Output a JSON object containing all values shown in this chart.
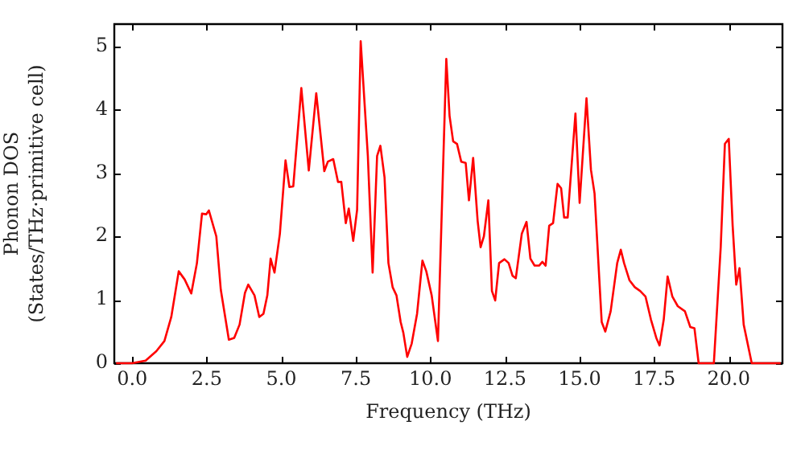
{
  "chart_data": {
    "type": "line",
    "xlabel": "Frequency (THz)",
    "ylabel": "Phonon DOS\n(States/THz·primitive cell)",
    "xlim": [
      -0.6,
      21.8
    ],
    "ylim": [
      0,
      5.35
    ],
    "xticks": [
      {
        "value": 0,
        "label": "0.0"
      },
      {
        "value": 2.5,
        "label": "2.5"
      },
      {
        "value": 5,
        "label": "5.0"
      },
      {
        "value": 7.5,
        "label": "7.5"
      },
      {
        "value": 10,
        "label": "10.0"
      },
      {
        "value": 12.5,
        "label": "12.5"
      },
      {
        "value": 15,
        "label": "15.0"
      },
      {
        "value": 17.5,
        "label": "17.5"
      },
      {
        "value": 20,
        "label": "20.0"
      }
    ],
    "yticks": [
      0,
      1,
      2,
      3,
      4,
      5
    ],
    "grid": false,
    "legend": false,
    "marker": "none",
    "line_style": "solid",
    "series": [
      {
        "color": "#ff0000",
        "x": [
          -0.54,
          0,
          0.45,
          0.81,
          1.08,
          1.31,
          1.56,
          1.76,
          1.98,
          2.17,
          2.34,
          2.48,
          2.57,
          2.82,
          2.97,
          3.24,
          3.42,
          3.6,
          3.78,
          3.89,
          4.1,
          4.26,
          4.4,
          4.53,
          4.64,
          4.77,
          4.95,
          5.14,
          5.27,
          5.4,
          5.67,
          5.92,
          6.17,
          6.44,
          6.56,
          6.74,
          6.9,
          7.01,
          7.16,
          7.26,
          7.41,
          7.54,
          7.66,
          7.9,
          8.06,
          8.21,
          8.32,
          8.46,
          8.59,
          8.73,
          8.86,
          9.0,
          9.09,
          9.22,
          9.37,
          9.55,
          9.73,
          9.86,
          10.04,
          10.25,
          10.53,
          10.64,
          10.76,
          10.89,
          11.03,
          11.18,
          11.29,
          11.43,
          11.58,
          11.68,
          11.79,
          11.94,
          12.06,
          12.17,
          12.3,
          12.48,
          12.62,
          12.75,
          12.86,
          13.06,
          13.22,
          13.35,
          13.49,
          13.64,
          13.75,
          13.86,
          13.98,
          14.11,
          14.26,
          14.38,
          14.48,
          14.6,
          14.86,
          15.0,
          15.23,
          15.38,
          15.5,
          15.74,
          15.86,
          16.04,
          16.26,
          16.38,
          16.49,
          16.67,
          16.85,
          17.03,
          17.21,
          17.39,
          17.57,
          17.68,
          17.82,
          17.95,
          18.11,
          18.29,
          18.53,
          18.71,
          18.85,
          18.99,
          19.5,
          19.73,
          19.87,
          20.0,
          20.13,
          20.25,
          20.36,
          20.5,
          20.77,
          21.74
        ],
        "values": [
          0,
          0,
          0.04,
          0.19,
          0.35,
          0.73,
          1.45,
          1.32,
          1.1,
          1.58,
          2.36,
          2.35,
          2.41,
          2.0,
          1.16,
          0.37,
          0.4,
          0.61,
          1.11,
          1.24,
          1.07,
          0.73,
          0.78,
          1.07,
          1.65,
          1.43,
          2.04,
          3.2,
          2.78,
          2.79,
          4.34,
          3.04,
          4.26,
          3.03,
          3.18,
          3.22,
          2.86,
          2.86,
          2.21,
          2.44,
          1.93,
          2.42,
          5.08,
          3.27,
          1.43,
          3.27,
          3.43,
          2.93,
          1.58,
          1.2,
          1.07,
          0.65,
          0.48,
          0.1,
          0.31,
          0.78,
          1.62,
          1.45,
          1.07,
          0.35,
          4.8,
          3.9,
          3.5,
          3.46,
          3.18,
          3.16,
          2.57,
          3.24,
          2.25,
          1.83,
          2.0,
          2.57,
          1.14,
          0.99,
          1.58,
          1.64,
          1.58,
          1.38,
          1.34,
          2.04,
          2.23,
          1.65,
          1.54,
          1.54,
          1.6,
          1.54,
          2.17,
          2.21,
          2.83,
          2.76,
          2.3,
          2.3,
          3.94,
          2.53,
          4.18,
          3.05,
          2.68,
          0.65,
          0.5,
          0.82,
          1.58,
          1.79,
          1.58,
          1.31,
          1.2,
          1.14,
          1.05,
          0.69,
          0.4,
          0.28,
          0.69,
          1.37,
          1.05,
          0.9,
          0.82,
          0.57,
          0.55,
          0,
          0,
          1.83,
          3.46,
          3.54,
          2.17,
          1.24,
          1.5,
          0.61,
          0,
          0
        ]
      }
    ]
  }
}
